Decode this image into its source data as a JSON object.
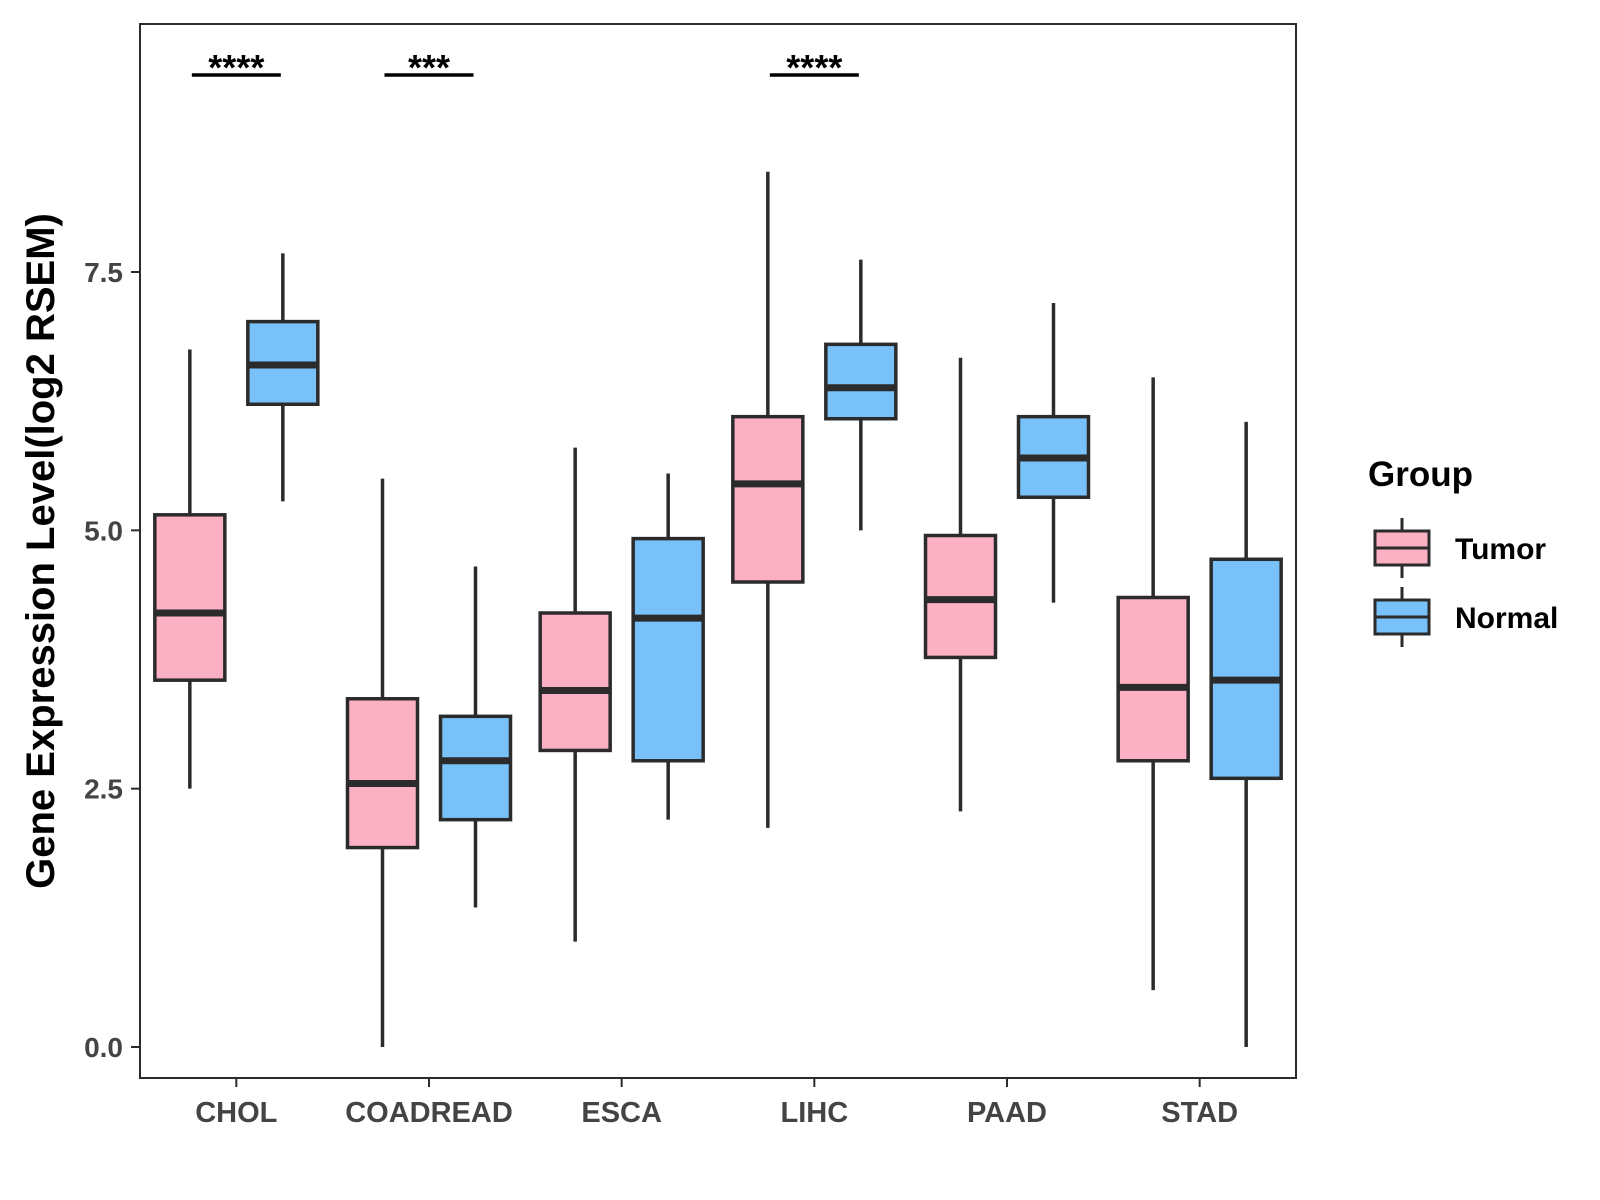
{
  "chart_data": {
    "type": "boxplot",
    "title": "",
    "xlabel": "",
    "ylabel": "Gene Expression Level(log2 RSEM)",
    "ylim": [
      -0.3,
      9.9
    ],
    "yticks": [
      0.0,
      2.5,
      5.0,
      7.5
    ],
    "ytick_labels": [
      "0.0",
      "2.5",
      "5.0",
      "7.5"
    ],
    "grid": false,
    "categories": [
      "CHOL",
      "COADREAD",
      "ESCA",
      "LIHC",
      "PAAD",
      "STAD"
    ],
    "legend": {
      "title": "Group",
      "position": "right",
      "entries": [
        {
          "name": "Tumor",
          "color": "#fbb1c3"
        },
        {
          "name": "Normal",
          "color": "#79c1f9"
        }
      ]
    },
    "series": [
      {
        "name": "Tumor",
        "color": "#fbb1c3",
        "boxes": [
          {
            "whisker_low": 2.5,
            "q1": 3.55,
            "median": 4.2,
            "q3": 5.15,
            "whisker_high": 6.75
          },
          {
            "whisker_low": 0.0,
            "q1": 1.93,
            "median": 2.55,
            "q3": 3.37,
            "whisker_high": 5.5
          },
          {
            "whisker_low": 1.02,
            "q1": 2.87,
            "median": 3.45,
            "q3": 4.2,
            "whisker_high": 5.8
          },
          {
            "whisker_low": 2.12,
            "q1": 4.5,
            "median": 5.45,
            "q3": 6.1,
            "whisker_high": 8.47
          },
          {
            "whisker_low": 2.28,
            "q1": 3.77,
            "median": 4.33,
            "q3": 4.95,
            "whisker_high": 6.67
          },
          {
            "whisker_low": 0.55,
            "q1": 2.77,
            "median": 3.48,
            "q3": 4.35,
            "whisker_high": 6.48
          }
        ]
      },
      {
        "name": "Normal",
        "color": "#79c1f9",
        "boxes": [
          {
            "whisker_low": 5.28,
            "q1": 6.22,
            "median": 6.6,
            "q3": 7.02,
            "whisker_high": 7.68
          },
          {
            "whisker_low": 1.35,
            "q1": 2.2,
            "median": 2.77,
            "q3": 3.2,
            "whisker_high": 4.65
          },
          {
            "whisker_low": 2.2,
            "q1": 2.77,
            "median": 4.15,
            "q3": 4.92,
            "whisker_high": 5.55
          },
          {
            "whisker_low": 5.0,
            "q1": 6.08,
            "median": 6.38,
            "q3": 6.8,
            "whisker_high": 7.62
          },
          {
            "whisker_low": 4.3,
            "q1": 5.32,
            "median": 5.7,
            "q3": 6.1,
            "whisker_high": 7.2
          },
          {
            "whisker_low": 0.0,
            "q1": 2.6,
            "median": 3.55,
            "q3": 4.72,
            "whisker_high": 6.05
          }
        ]
      }
    ],
    "annotations": [
      {
        "category": "CHOL",
        "label": "****"
      },
      {
        "category": "COADREAD",
        "label": "***"
      },
      {
        "category": "LIHC",
        "label": "****"
      }
    ]
  }
}
